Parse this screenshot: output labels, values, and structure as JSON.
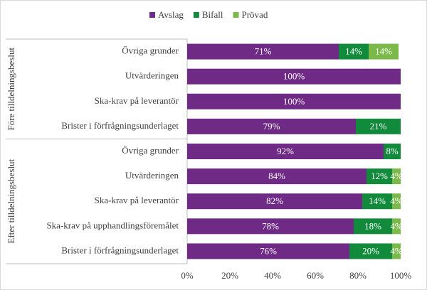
{
  "chart_data": {
    "type": "stacked-barh",
    "categories": [
      "Övriga grunder",
      "Utvärderingen",
      "Ska-krav på leverantör",
      "Brister i förfrågningsunderlaget",
      "Övriga grunder",
      "Utvärderingen",
      "Ska-krav på leverantör",
      "Ska-krav på upphandlingsföremålet",
      "Brister i förfrågningsunderlaget"
    ],
    "category_groups": [
      "Före tilldelningsbeslut",
      "Före tilldelningsbeslut",
      "Före tilldelningsbeslut",
      "Före tilldelningsbeslut",
      "Efter tilldelningsbeslut",
      "Efter tilldelningsbeslut",
      "Efter tilldelningsbeslut",
      "Efter tilldelningsbeslut",
      "Efter tilldelningsbeslut"
    ],
    "series": [
      {
        "name": "Avslag",
        "color": "#6e2a84",
        "values": [
          71,
          100,
          100,
          79,
          92,
          84,
          82,
          78,
          76
        ],
        "value_labels": [
          "71%",
          "100%",
          "100%",
          "79%",
          "92%",
          "84%",
          "82%",
          "78%",
          "76%"
        ]
      },
      {
        "name": "Bifall",
        "color": "#128a3c",
        "values": [
          14,
          null,
          null,
          21,
          8,
          12,
          14,
          18,
          20
        ],
        "value_labels": [
          "14%",
          null,
          null,
          "21%",
          "8%",
          "12%",
          "14%",
          "18%",
          "20%"
        ]
      },
      {
        "name": "Prövad",
        "color": "#7cb94b",
        "values": [
          14,
          null,
          null,
          null,
          null,
          4,
          4,
          4,
          4
        ],
        "value_labels": [
          "14%",
          null,
          null,
          null,
          null,
          "4%",
          "4%",
          "4%",
          "4%"
        ]
      }
    ],
    "xlim": [
      0,
      100
    ],
    "xticks": [
      {
        "value": 0,
        "label": "0%"
      },
      {
        "value": 20,
        "label": "20%"
      },
      {
        "value": 40,
        "label": "40%"
      },
      {
        "value": 60,
        "label": "60%"
      },
      {
        "value": 80,
        "label": "80%"
      },
      {
        "value": 100,
        "label": "100%"
      }
    ],
    "legend": "top"
  }
}
